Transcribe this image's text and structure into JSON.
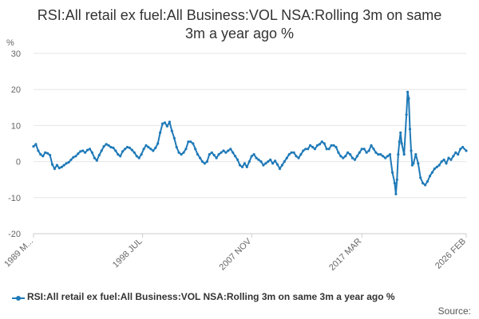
{
  "title": "RSI:All retail ex fuel:All Business:VOL NSA:Rolling 3m on same 3m a year ago %",
  "source_label": "Source:",
  "colors": {
    "series": "#1f7ab8",
    "grid": "#e6e6e6",
    "axis": "#cccccc",
    "text": "#666666"
  },
  "chart_data": {
    "type": "line",
    "title": "RSI:All retail ex fuel:All Business:VOL NSA:Rolling 3m on same 3m a year ago %",
    "ylabel": "%",
    "xlabel": "",
    "ylim": [
      -20,
      30
    ],
    "yticks": [
      -20,
      -10,
      0,
      10,
      20,
      30
    ],
    "xlim": [
      1989.2,
      2026.1
    ],
    "xticks": [
      {
        "x": 1989.2,
        "label": "1989 M..."
      },
      {
        "x": 1998.5,
        "label": "1998 JUL"
      },
      {
        "x": 2007.8,
        "label": "2007 NOV"
      },
      {
        "x": 2017.2,
        "label": "2017 MAR"
      },
      {
        "x": 2026.1,
        "label": "2026 FEB"
      }
    ],
    "grid": true,
    "legend": "bottom",
    "series": [
      {
        "name": "RSI:All retail ex fuel:All Business:VOL NSA:Rolling 3m on same 3m a year ago %",
        "x": [
          1989.2,
          1989.4,
          1989.6,
          1989.8,
          1990.0,
          1990.2,
          1990.4,
          1990.6,
          1990.8,
          1991.0,
          1991.2,
          1991.4,
          1991.6,
          1991.8,
          1992.0,
          1992.2,
          1992.4,
          1992.6,
          1992.8,
          1993.0,
          1993.2,
          1993.4,
          1993.6,
          1993.8,
          1994.0,
          1994.2,
          1994.4,
          1994.6,
          1994.8,
          1995.0,
          1995.2,
          1995.4,
          1995.6,
          1995.8,
          1996.0,
          1996.2,
          1996.4,
          1996.6,
          1996.8,
          1997.0,
          1997.2,
          1997.4,
          1997.6,
          1997.8,
          1998.0,
          1998.2,
          1998.4,
          1998.6,
          1998.8,
          1999.0,
          1999.2,
          1999.4,
          1999.6,
          1999.8,
          2000.0,
          2000.2,
          2000.4,
          2000.6,
          2000.8,
          2001.0,
          2001.2,
          2001.4,
          2001.6,
          2001.8,
          2002.0,
          2002.2,
          2002.4,
          2002.6,
          2002.8,
          2003.0,
          2003.2,
          2003.4,
          2003.6,
          2003.8,
          2004.0,
          2004.2,
          2004.4,
          2004.6,
          2004.8,
          2005.0,
          2005.2,
          2005.4,
          2005.6,
          2005.8,
          2006.0,
          2006.2,
          2006.4,
          2006.6,
          2006.8,
          2007.0,
          2007.2,
          2007.4,
          2007.6,
          2007.8,
          2008.0,
          2008.2,
          2008.4,
          2008.6,
          2008.8,
          2009.0,
          2009.2,
          2009.4,
          2009.6,
          2009.8,
          2010.0,
          2010.2,
          2010.4,
          2010.6,
          2010.8,
          2011.0,
          2011.2,
          2011.4,
          2011.6,
          2011.8,
          2012.0,
          2012.2,
          2012.4,
          2012.6,
          2012.8,
          2013.0,
          2013.2,
          2013.4,
          2013.6,
          2013.8,
          2014.0,
          2014.2,
          2014.4,
          2014.6,
          2014.8,
          2015.0,
          2015.2,
          2015.4,
          2015.6,
          2015.8,
          2016.0,
          2016.2,
          2016.4,
          2016.6,
          2016.8,
          2017.0,
          2017.2,
          2017.4,
          2017.6,
          2017.8,
          2018.0,
          2018.2,
          2018.4,
          2018.6,
          2018.8,
          2019.0,
          2019.2,
          2019.4,
          2019.6,
          2019.8,
          2020.0,
          2020.1,
          2020.2,
          2020.3,
          2020.4,
          2020.5,
          2020.6,
          2020.8,
          2021.0,
          2021.1,
          2021.2,
          2021.3,
          2021.4,
          2021.5,
          2021.6,
          2021.8,
          2022.0,
          2022.2,
          2022.4,
          2022.6,
          2022.8,
          2023.0,
          2023.2,
          2023.4,
          2023.6,
          2023.8,
          2024.0,
          2024.2,
          2024.4,
          2024.6,
          2024.8,
          2025.0,
          2025.2,
          2025.4,
          2025.6,
          2025.8,
          2026.1
        ],
        "values": [
          4.2,
          4.8,
          3.0,
          2.0,
          1.5,
          2.5,
          2.3,
          1.8,
          -0.8,
          -2.0,
          -1.0,
          -1.8,
          -1.5,
          -1.0,
          -0.5,
          -0.2,
          0.5,
          1.2,
          1.5,
          2.2,
          2.8,
          3.0,
          2.5,
          3.2,
          3.5,
          2.5,
          1.0,
          0.3,
          1.8,
          3.0,
          4.2,
          4.8,
          4.5,
          4.0,
          3.8,
          3.0,
          2.0,
          1.5,
          2.8,
          3.5,
          4.0,
          3.8,
          3.2,
          2.5,
          1.5,
          1.0,
          2.0,
          3.5,
          4.5,
          4.0,
          3.5,
          3.0,
          3.8,
          5.0,
          8.0,
          10.5,
          10.8,
          9.8,
          11.0,
          8.5,
          6.5,
          4.0,
          2.5,
          2.0,
          2.5,
          3.5,
          5.5,
          5.5,
          5.0,
          3.5,
          2.0,
          1.0,
          0.0,
          -0.5,
          0.0,
          2.0,
          2.5,
          1.8,
          1.0,
          2.0,
          2.5,
          3.0,
          2.5,
          3.0,
          3.5,
          2.5,
          1.5,
          0.5,
          -1.0,
          -1.5,
          -0.5,
          -1.5,
          0.0,
          1.5,
          2.0,
          1.0,
          0.5,
          0.0,
          -1.0,
          -0.5,
          0.0,
          0.5,
          -0.5,
          0.2,
          -0.8,
          -2.0,
          -1.0,
          0.0,
          1.0,
          2.0,
          2.5,
          2.5,
          1.5,
          1.0,
          2.0,
          3.0,
          3.5,
          3.5,
          4.5,
          4.0,
          3.5,
          4.5,
          4.8,
          5.5,
          5.0,
          3.5,
          3.5,
          4.5,
          4.5,
          4.0,
          2.5,
          1.5,
          1.0,
          1.5,
          2.5,
          2.0,
          1.0,
          0.5,
          1.5,
          2.5,
          3.5,
          3.5,
          2.5,
          3.0,
          4.5,
          3.5,
          2.5,
          2.0,
          2.0,
          1.5,
          1.0,
          1.5,
          2.0,
          -3.0,
          -6.0,
          -9.0,
          -5.0,
          2.0,
          5.5,
          8.0,
          5.0,
          2.0,
          13.0,
          19.3,
          17.5,
          9.0,
          3.0,
          -1.0,
          -0.5,
          2.0,
          -0.5,
          -4.5,
          -6.0,
          -6.5,
          -5.5,
          -4.0,
          -3.0,
          -2.0,
          -1.5,
          -1.0,
          0.0,
          0.5,
          -0.5,
          1.0,
          0.5,
          1.5,
          2.5,
          2.0,
          3.5,
          4.0,
          3.0
        ]
      }
    ]
  }
}
